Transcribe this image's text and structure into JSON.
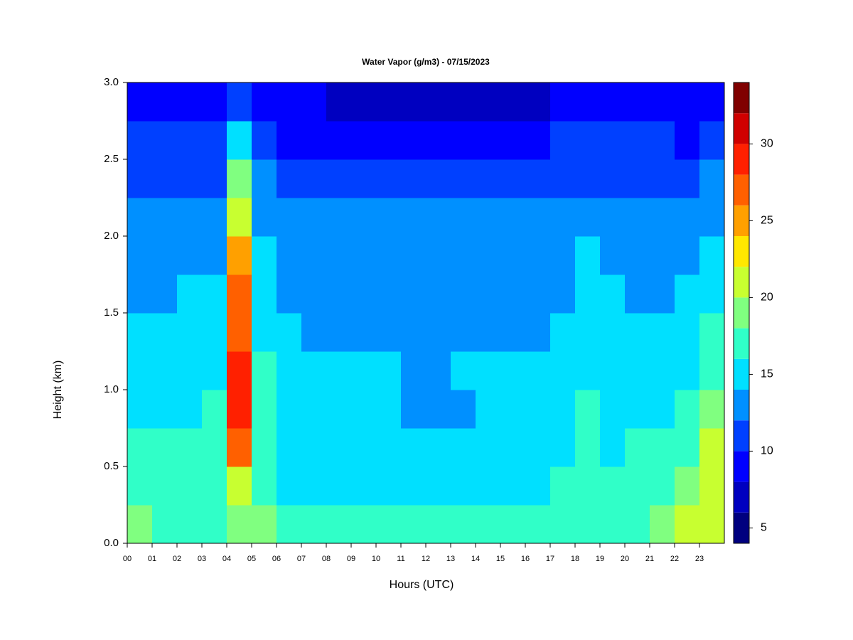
{
  "chart_data": {
    "type": "heatmap",
    "title": "Water Vapor (g/m3) - 07/15/2023",
    "x_label": "Hours (UTC)",
    "y_label": "Height (km)",
    "x": [
      0.5,
      1.5,
      2.5,
      3.5,
      4.5,
      5.5,
      6.5,
      7.5,
      8.5,
      9.5,
      10.5,
      11.5,
      12.5,
      13.5,
      14.5,
      15.5,
      16.5,
      17.5,
      18.5,
      19.5,
      20.5,
      21.5,
      22.5,
      23.5
    ],
    "y": [
      0.125,
      0.375,
      0.625,
      0.875,
      1.125,
      1.375,
      1.625,
      1.875,
      2.125,
      2.375,
      2.625,
      2.875
    ],
    "z": [
      [
        19,
        17,
        16,
        15,
        15,
        14,
        13,
        12,
        12,
        11,
        10,
        9
      ],
      [
        17,
        17,
        16,
        15,
        15,
        14,
        13,
        13,
        12,
        11,
        10,
        9
      ],
      [
        17,
        17,
        16,
        15,
        15,
        14,
        14,
        13,
        12,
        11,
        10,
        9
      ],
      [
        17,
        17,
        16,
        16,
        15,
        15,
        14,
        13,
        12,
        11,
        10,
        8
      ],
      [
        19,
        21,
        26,
        29,
        28,
        27,
        26,
        24,
        21,
        18,
        14,
        11
      ],
      [
        18,
        17,
        16,
        16,
        16,
        15,
        15,
        14,
        13,
        12,
        10,
        8
      ],
      [
        17,
        15,
        15,
        15,
        14,
        14,
        13,
        13,
        12,
        11,
        9,
        8
      ],
      [
        17,
        15,
        15,
        15,
        14,
        13,
        13,
        13,
        12,
        11,
        9,
        8
      ],
      [
        17,
        15,
        15,
        15,
        14,
        13,
        13,
        13,
        12,
        11,
        9,
        7
      ],
      [
        17,
        15,
        15,
        15,
        14,
        13,
        13,
        13,
        12,
        11,
        9,
        7
      ],
      [
        17,
        15,
        15,
        14,
        14,
        13,
        13,
        13,
        12,
        11,
        9,
        7
      ],
      [
        17,
        15,
        14,
        13,
        13,
        13,
        13,
        13,
        12,
        11,
        9,
        7
      ],
      [
        17,
        15,
        14,
        13,
        13,
        13,
        13,
        13,
        12,
        11,
        9,
        7
      ],
      [
        17,
        15,
        15,
        13,
        14,
        13,
        13,
        13,
        12,
        11,
        9,
        7
      ],
      [
        17,
        15,
        15,
        15,
        14,
        13,
        13,
        13,
        12,
        11,
        9,
        7
      ],
      [
        17,
        15,
        15,
        15,
        14,
        13,
        13,
        13,
        12,
        11,
        9,
        7
      ],
      [
        17,
        15,
        15,
        15,
        14,
        13,
        13,
        13,
        12,
        11,
        9,
        7
      ],
      [
        17,
        16,
        15,
        15,
        14,
        14,
        13,
        13,
        13,
        11,
        10,
        8
      ],
      [
        17,
        17,
        17,
        16,
        15,
        15,
        14,
        14,
        13,
        11,
        10,
        8
      ],
      [
        17,
        16,
        15,
        15,
        15,
        14,
        14,
        13,
        12,
        11,
        10,
        8
      ],
      [
        17,
        16,
        16,
        15,
        15,
        14,
        13,
        13,
        12,
        11,
        10,
        8
      ],
      [
        19,
        17,
        16,
        15,
        15,
        14,
        13,
        13,
        12,
        11,
        10,
        8
      ],
      [
        20,
        18,
        17,
        16,
        15,
        14,
        14,
        13,
        12,
        11,
        9,
        8
      ],
      [
        21,
        21,
        20,
        19,
        17,
        16,
        15,
        14,
        13,
        12,
        10,
        9
      ]
    ],
    "xlim": [
      0,
      24
    ],
    "ylim": [
      0,
      3
    ],
    "xticks": [
      {
        "value": 0,
        "label": "00"
      },
      {
        "value": 1,
        "label": "01"
      },
      {
        "value": 2,
        "label": "02"
      },
      {
        "value": 3,
        "label": "03"
      },
      {
        "value": 4,
        "label": "04"
      },
      {
        "value": 5,
        "label": "05"
      },
      {
        "value": 6,
        "label": "06"
      },
      {
        "value": 7,
        "label": "07"
      },
      {
        "value": 8,
        "label": "08"
      },
      {
        "value": 9,
        "label": "09"
      },
      10,
      11,
      12,
      13,
      14,
      15,
      16,
      17,
      18,
      19,
      20,
      21,
      22,
      23
    ],
    "yticks": [
      {
        "value": 0,
        "label": "0.0"
      },
      0.5,
      {
        "value": 1,
        "label": "1.0"
      },
      1.5,
      {
        "value": 2,
        "label": "2.0"
      },
      2.5,
      {
        "value": 3,
        "label": "3.0"
      }
    ],
    "levels": [
      4,
      6,
      8,
      10,
      12,
      14,
      16,
      18,
      20,
      22,
      24,
      26,
      28,
      30,
      32,
      34
    ],
    "colors": [
      "#00007f",
      "#0000c0",
      "#0000ff",
      "#0040ff",
      "#0090ff",
      "#00e0ff",
      "#30ffc8",
      "#80ff80",
      "#c8ff30",
      "#ffe800",
      "#ffa000",
      "#ff6000",
      "#ff2000",
      "#d00000",
      "#800000"
    ],
    "cticks": [
      5,
      10,
      15,
      20,
      25,
      30
    ]
  }
}
